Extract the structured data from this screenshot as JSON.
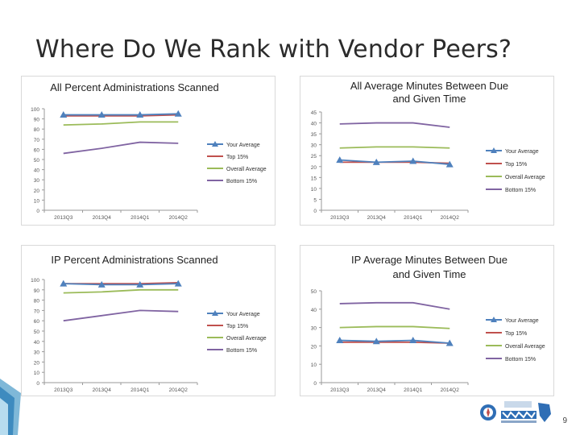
{
  "slide": {
    "title": "Where Do We Rank with Vendor Peers?",
    "page_number": "9"
  },
  "colors": {
    "your_average": "#4f81bd",
    "top_15": "#c0504d",
    "overall_average": "#9bbb59",
    "bottom_15": "#8064a2"
  },
  "chart_data": [
    {
      "type": "line",
      "title": "All Percent Administrations Scanned",
      "categories": [
        "2013Q3",
        "2013Q4",
        "2014Q1",
        "2014Q2"
      ],
      "ylim": [
        0,
        100
      ],
      "yticks": [
        0,
        10,
        20,
        30,
        40,
        50,
        60,
        70,
        80,
        90,
        100
      ],
      "series": [
        {
          "name": "Your Average",
          "values": [
            94,
            94,
            94,
            95
          ],
          "marker": true
        },
        {
          "name": "Top 15%",
          "values": [
            93,
            93,
            93,
            94
          ]
        },
        {
          "name": "Overall Average",
          "values": [
            84,
            85,
            87,
            87
          ]
        },
        {
          "name": "Bottom 15%",
          "values": [
            56,
            61,
            67,
            66
          ]
        }
      ]
    },
    {
      "type": "line",
      "title": "All Average Minutes Between Due and Given Time",
      "categories": [
        "2013Q3",
        "2013Q4",
        "2014Q1",
        "2014Q2"
      ],
      "ylim": [
        0,
        45
      ],
      "yticks": [
        0,
        5,
        10,
        15,
        20,
        25,
        30,
        35,
        40,
        45
      ],
      "series": [
        {
          "name": "Your Average",
          "values": [
            23,
            22,
            22.5,
            21
          ],
          "marker": true
        },
        {
          "name": "Top 15%",
          "values": [
            22,
            22,
            22,
            21.5
          ]
        },
        {
          "name": "Overall Average",
          "values": [
            28.5,
            29,
            29,
            28.5
          ]
        },
        {
          "name": "Bottom 15%",
          "values": [
            39.5,
            40,
            40,
            38
          ]
        }
      ]
    },
    {
      "type": "line",
      "title": "IP Percent Administrations Scanned",
      "categories": [
        "2013Q3",
        "2013Q4",
        "2014Q1",
        "2014Q2"
      ],
      "ylim": [
        0,
        100
      ],
      "yticks": [
        0,
        10,
        20,
        30,
        40,
        50,
        60,
        70,
        80,
        90,
        100
      ],
      "series": [
        {
          "name": "Your Average",
          "values": [
            96,
            95,
            95,
            96
          ],
          "marker": true
        },
        {
          "name": "Top 15%",
          "values": [
            96,
            96,
            96,
            97
          ]
        },
        {
          "name": "Overall Average",
          "values": [
            87,
            88,
            90,
            90
          ]
        },
        {
          "name": "Bottom 15%",
          "values": [
            60,
            65,
            70,
            69
          ]
        }
      ]
    },
    {
      "type": "line",
      "title": "IP Average Minutes Between Due and Given Time",
      "categories": [
        "2013Q3",
        "2013Q4",
        "2014Q1",
        "2014Q2"
      ],
      "ylim": [
        0,
        50
      ],
      "yticks": [
        0,
        10,
        20,
        30,
        40,
        50
      ],
      "series": [
        {
          "name": "Your Average",
          "values": [
            23,
            22.5,
            23,
            21.5
          ],
          "marker": true
        },
        {
          "name": "Top 15%",
          "values": [
            22,
            22,
            22,
            21.5
          ]
        },
        {
          "name": "Overall Average",
          "values": [
            30,
            30.5,
            30.5,
            29.5
          ]
        },
        {
          "name": "Bottom 15%",
          "values": [
            43,
            43.5,
            43.5,
            40
          ]
        }
      ]
    }
  ]
}
